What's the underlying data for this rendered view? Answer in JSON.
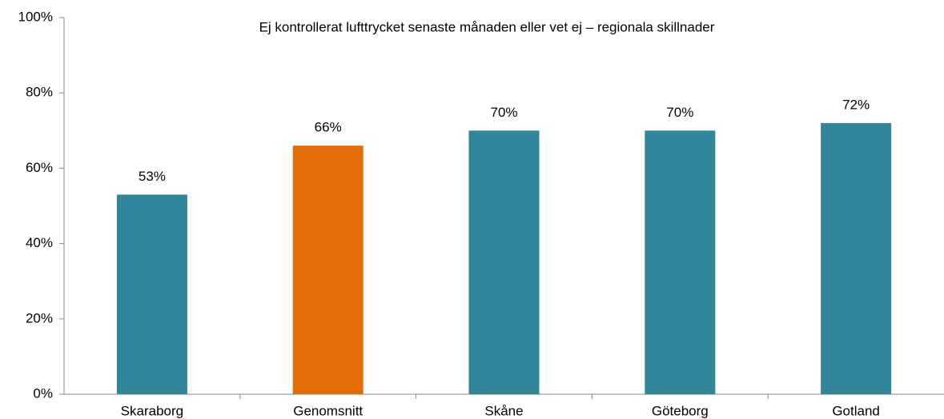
{
  "chart_data": {
    "type": "bar",
    "title": "Ej kontrollerat lufttrycket senaste månaden eller vet ej – regionala skillnader",
    "categories": [
      "Skaraborg",
      "Genomsnitt",
      "Skåne",
      "Göteborg",
      "Gotland"
    ],
    "values": [
      53,
      66,
      70,
      70,
      72
    ],
    "value_labels": [
      "53%",
      "66%",
      "70%",
      "70%",
      "72%"
    ],
    "colors": [
      "#31869b",
      "#e36c09",
      "#31869b",
      "#31869b",
      "#31869b"
    ],
    "ylim": [
      0,
      100
    ],
    "yticks": [
      {
        "value": 0,
        "label": "0%"
      },
      {
        "value": 20,
        "label": "20%"
      },
      {
        "value": 40,
        "label": "40%"
      },
      {
        "value": 60,
        "label": "60%"
      },
      {
        "value": 80,
        "label": "80%"
      },
      {
        "value": 100,
        "label": "100%"
      }
    ],
    "grid": false
  }
}
